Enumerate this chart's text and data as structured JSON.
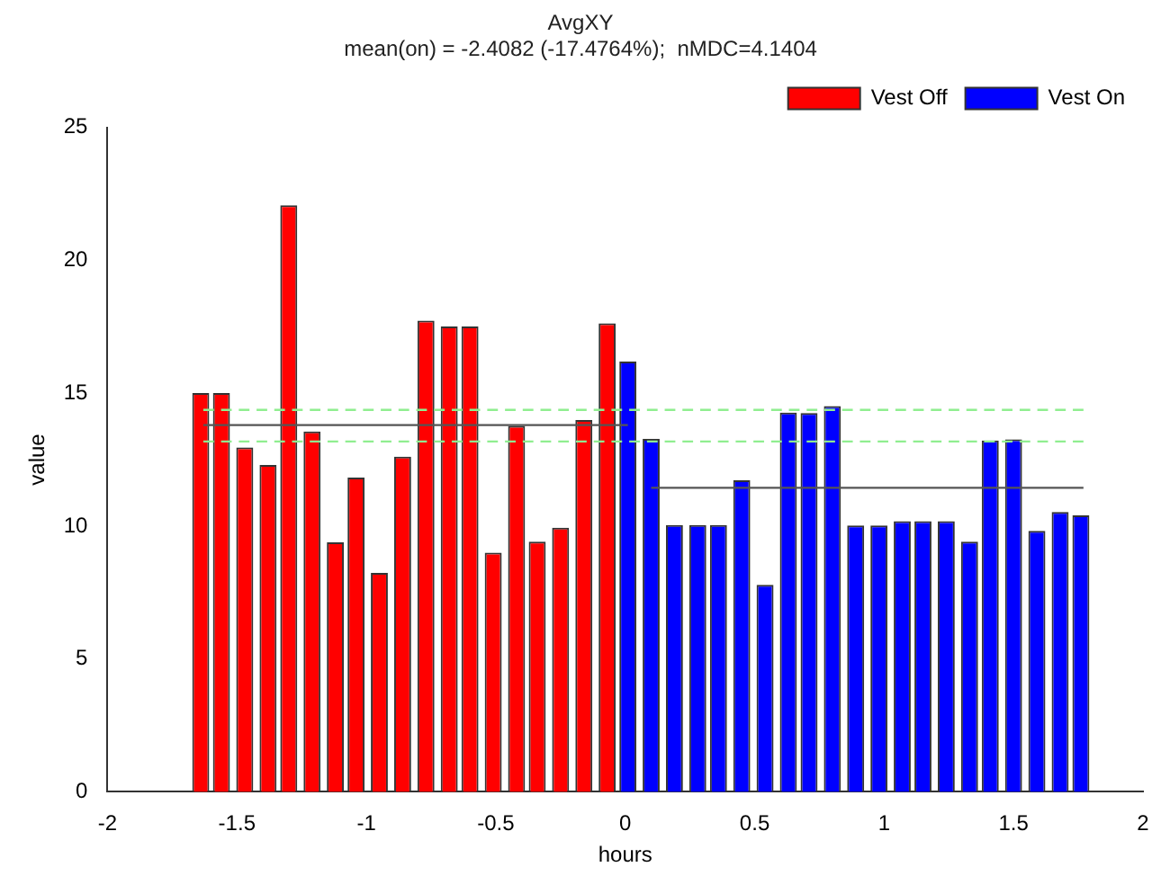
{
  "chart_data": {
    "type": "bar",
    "title": "AvgXY",
    "subtitle": "mean(on) = -2.4082 (-17.4764%);  nMDC=4.1404",
    "xlabel": "hours",
    "ylabel": "value",
    "xlim": [
      -2,
      2
    ],
    "xticks": [
      -2,
      -1.5,
      -1,
      -0.5,
      0,
      0.5,
      1,
      1.5,
      2
    ],
    "ylim": [
      0,
      25
    ],
    "yticks": [
      0,
      5,
      10,
      15,
      20,
      25
    ],
    "grid": false,
    "legend": "top right",
    "series": [
      {
        "name": "Vest Off",
        "color": "#ff0000",
        "x": [
          -1.64,
          -1.56,
          -1.47,
          -1.38,
          -1.3,
          -1.21,
          -1.12,
          -1.04,
          -0.95,
          -0.86,
          -0.77,
          -0.68,
          -0.6,
          -0.51,
          -0.42,
          -0.34,
          -0.25,
          -0.16,
          -0.07
        ],
        "values": [
          15.0,
          15.0,
          12.96,
          12.3,
          22.07,
          13.56,
          9.39,
          11.82,
          8.24,
          12.61,
          17.73,
          17.51,
          17.51,
          9.0,
          13.77,
          9.41,
          9.94,
          13.99,
          17.63
        ]
      },
      {
        "name": "Vest On",
        "color": "#0000ff",
        "x": [
          0.01,
          0.1,
          0.19,
          0.28,
          0.36,
          0.45,
          0.54,
          0.63,
          0.71,
          0.8,
          0.89,
          0.98,
          1.07,
          1.15,
          1.24,
          1.33,
          1.41,
          1.5,
          1.59,
          1.68,
          1.76
        ],
        "values": [
          16.19,
          13.28,
          10.04,
          10.04,
          10.04,
          11.72,
          7.79,
          14.27,
          14.25,
          14.51,
          10.02,
          10.02,
          10.18,
          10.18,
          10.18,
          9.41,
          13.22,
          13.26,
          9.82,
          10.53,
          10.4
        ]
      },
      {
        "type": "line",
        "color": "#555555",
        "line_style": "solid",
        "x": [
          -1.63,
          0.01
        ],
        "values": [
          13.8,
          13.8
        ]
      },
      {
        "type": "line",
        "color": "#555555",
        "line_style": "solid",
        "x": [
          0.1,
          1.77
        ],
        "values": [
          11.44,
          11.44
        ]
      },
      {
        "type": "line",
        "color": "#90ee90",
        "line_style": "dashed",
        "x": [
          -1.63,
          1.77
        ],
        "values": [
          14.37,
          14.37
        ]
      },
      {
        "type": "line",
        "color": "#90ee90",
        "line_style": "dashed",
        "x": [
          -1.63,
          1.77
        ],
        "values": [
          13.18,
          13.18
        ]
      }
    ]
  }
}
